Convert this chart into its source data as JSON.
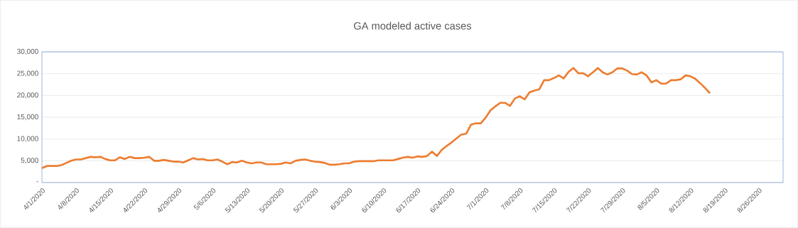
{
  "chart_data": {
    "type": "line",
    "title": "GA modeled active cases",
    "x": [
      "2020-04-01",
      "2020-04-02",
      "2020-04-03",
      "2020-04-04",
      "2020-04-05",
      "2020-04-06",
      "2020-04-07",
      "2020-04-08",
      "2020-04-09",
      "2020-04-10",
      "2020-04-11",
      "2020-04-12",
      "2020-04-13",
      "2020-04-14",
      "2020-04-15",
      "2020-04-16",
      "2020-04-17",
      "2020-04-18",
      "2020-04-19",
      "2020-04-20",
      "2020-04-21",
      "2020-04-22",
      "2020-04-23",
      "2020-04-24",
      "2020-04-25",
      "2020-04-26",
      "2020-04-27",
      "2020-04-28",
      "2020-04-29",
      "2020-04-30",
      "2020-05-01",
      "2020-05-02",
      "2020-05-03",
      "2020-05-04",
      "2020-05-05",
      "2020-05-06",
      "2020-05-07",
      "2020-05-08",
      "2020-05-09",
      "2020-05-10",
      "2020-05-11",
      "2020-05-12",
      "2020-05-13",
      "2020-05-14",
      "2020-05-15",
      "2020-05-16",
      "2020-05-17",
      "2020-05-18",
      "2020-05-19",
      "2020-05-20",
      "2020-05-21",
      "2020-05-22",
      "2020-05-23",
      "2020-05-24",
      "2020-05-25",
      "2020-05-26",
      "2020-05-27",
      "2020-05-28",
      "2020-05-29",
      "2020-05-30",
      "2020-05-31",
      "2020-06-01",
      "2020-06-02",
      "2020-06-03",
      "2020-06-04",
      "2020-06-05",
      "2020-06-06",
      "2020-06-07",
      "2020-06-08",
      "2020-06-09",
      "2020-06-10",
      "2020-06-11",
      "2020-06-12",
      "2020-06-13",
      "2020-06-14",
      "2020-06-15",
      "2020-06-16",
      "2020-06-17",
      "2020-06-18",
      "2020-06-19",
      "2020-06-20",
      "2020-06-21",
      "2020-06-22",
      "2020-06-23",
      "2020-06-24",
      "2020-06-25",
      "2020-06-26",
      "2020-06-27",
      "2020-06-28",
      "2020-06-29",
      "2020-06-30",
      "2020-07-01",
      "2020-07-02",
      "2020-07-03",
      "2020-07-04",
      "2020-07-05",
      "2020-07-06",
      "2020-07-07",
      "2020-07-08",
      "2020-07-09",
      "2020-07-10",
      "2020-07-11",
      "2020-07-12",
      "2020-07-13",
      "2020-07-14",
      "2020-07-15",
      "2020-07-16",
      "2020-07-17",
      "2020-07-18",
      "2020-07-19",
      "2020-07-20",
      "2020-07-21",
      "2020-07-22",
      "2020-07-23",
      "2020-07-24",
      "2020-07-25",
      "2020-07-26",
      "2020-07-27",
      "2020-07-28",
      "2020-07-29",
      "2020-07-30",
      "2020-07-31",
      "2020-08-01",
      "2020-08-02",
      "2020-08-03",
      "2020-08-04",
      "2020-08-05",
      "2020-08-06",
      "2020-08-07",
      "2020-08-08",
      "2020-08-09",
      "2020-08-10",
      "2020-08-11",
      "2020-08-12",
      "2020-08-13",
      "2020-08-14",
      "2020-08-15",
      "2020-08-16"
    ],
    "series": [
      {
        "color": "#ed7d31",
        "values": [
          3300,
          3800,
          3800,
          3800,
          4000,
          4500,
          5000,
          5300,
          5300,
          5600,
          5900,
          5800,
          5900,
          5400,
          5100,
          5100,
          5800,
          5400,
          5900,
          5600,
          5600,
          5700,
          5900,
          5000,
          5000,
          5200,
          5000,
          4800,
          4800,
          4600,
          5100,
          5600,
          5300,
          5400,
          5100,
          5100,
          5300,
          4800,
          4200,
          4700,
          4600,
          5000,
          4600,
          4400,
          4600,
          4600,
          4200,
          4200,
          4200,
          4300,
          4600,
          4400,
          5000,
          5200,
          5300,
          5000,
          4800,
          4700,
          4500,
          4100,
          4100,
          4200,
          4400,
          4400,
          4800,
          4900,
          4900,
          4900,
          4900,
          5100,
          5100,
          5100,
          5100,
          5400,
          5700,
          5900,
          5700,
          6000,
          5900,
          6100,
          7100,
          6100,
          7500,
          8400,
          9200,
          10100,
          11000,
          11200,
          13300,
          13600,
          13600,
          14900,
          16600,
          17500,
          18300,
          18300,
          17600,
          19300,
          19800,
          19100,
          20700,
          21100,
          21400,
          23500,
          23500,
          24000,
          24600,
          23900,
          25400,
          26300,
          25100,
          25100,
          24400,
          25300,
          26300,
          25300,
          24800,
          25300,
          26200,
          26200,
          25700,
          24900,
          24800,
          25300,
          24600,
          23000,
          23500,
          22700,
          22700,
          23500,
          23500,
          23700,
          24600,
          24400,
          23800,
          22800,
          21700,
          20500
        ]
      }
    ],
    "xlim": [
      "2020-04-01",
      "2020-08-31"
    ],
    "xticks": [
      {
        "value": "2020-04-01",
        "label": "4/1/2020"
      },
      {
        "value": "2020-04-08",
        "label": "4/8/2020"
      },
      {
        "value": "2020-04-15",
        "label": "4/15/2020"
      },
      {
        "value": "2020-04-22",
        "label": "4/22/2020"
      },
      {
        "value": "2020-04-29",
        "label": "4/29/2020"
      },
      {
        "value": "2020-05-06",
        "label": "5/6/2020"
      },
      {
        "value": "2020-05-13",
        "label": "5/13/2020"
      },
      {
        "value": "2020-05-20",
        "label": "5/20/2020"
      },
      {
        "value": "2020-05-27",
        "label": "5/27/2020"
      },
      {
        "value": "2020-06-03",
        "label": "6/3/2020"
      },
      {
        "value": "2020-06-10",
        "label": "6/10/2020"
      },
      {
        "value": "2020-06-17",
        "label": "6/17/2020"
      },
      {
        "value": "2020-06-24",
        "label": "6/24/2020"
      },
      {
        "value": "2020-07-01",
        "label": "7/1/2020"
      },
      {
        "value": "2020-07-08",
        "label": "7/8/2020"
      },
      {
        "value": "2020-07-15",
        "label": "7/15/2020"
      },
      {
        "value": "2020-07-22",
        "label": "7/22/2020"
      },
      {
        "value": "2020-07-29",
        "label": "7/29/2020"
      },
      {
        "value": "2020-08-05",
        "label": "8/5/2020"
      },
      {
        "value": "2020-08-12",
        "label": "8/12/2020"
      },
      {
        "value": "2020-08-19",
        "label": "8/19/2020"
      },
      {
        "value": "2020-08-26",
        "label": "8/26/2020"
      }
    ],
    "ylim": [
      0,
      30000
    ],
    "yticks": [
      {
        "value": 0,
        "label": "-"
      },
      {
        "value": 5000,
        "label": "5,000"
      },
      {
        "value": 10000,
        "label": "10,000"
      },
      {
        "value": 15000,
        "label": "15,000"
      },
      {
        "value": 20000,
        "label": "20,000"
      },
      {
        "value": 25000,
        "label": "25,000"
      },
      {
        "value": 30000,
        "label": "30,000"
      }
    ],
    "grid": "y",
    "marker": "none",
    "line_style": "solid"
  }
}
